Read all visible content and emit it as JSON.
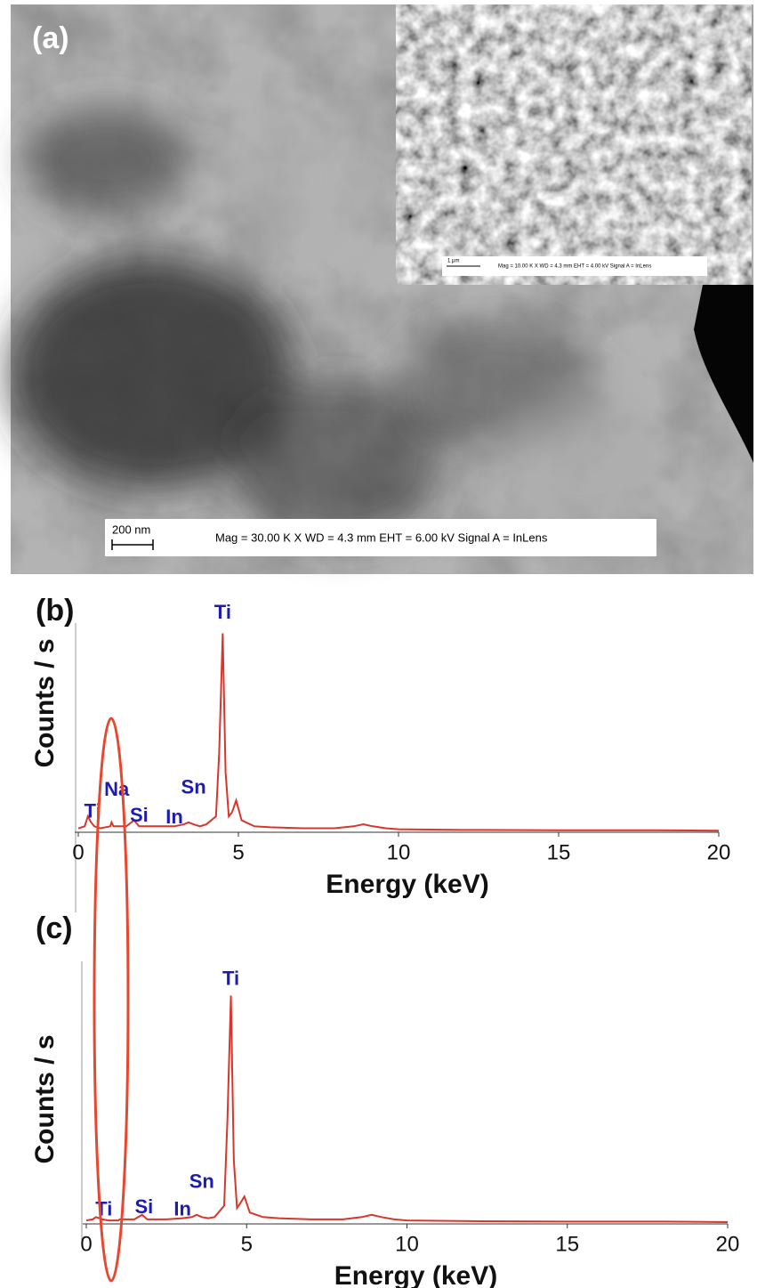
{
  "image": {
    "panel_label": "(a)",
    "scale_bar": "200 nm",
    "info": "Mag =  30.00 K X  WD =  4.3 mm   EHT =  6.00 kV   Signal A = InLens",
    "inset": {
      "scale_bar": "1 μm",
      "info": "Mag =  10.00 K X  WD =  4.3 mm   EHT =  4.00 kV   Signal A = InLens"
    }
  },
  "chart_data": [
    {
      "type": "line",
      "panel_label": "(b)",
      "y_label": "Counts / s",
      "x_label": "Energy (keV)",
      "x": [
        0,
        0.2,
        0.3,
        0.4,
        0.5,
        0.7,
        1.0,
        1.04,
        1.1,
        1.5,
        1.74,
        1.9,
        2.5,
        3.0,
        3.3,
        3.44,
        3.6,
        3.8,
        4.0,
        4.3,
        4.4,
        4.51,
        4.6,
        4.7,
        4.8,
        4.93,
        5.1,
        5.5,
        6.0,
        7.0,
        8.0,
        8.6,
        8.9,
        9.2,
        9.6,
        10,
        12,
        15,
        18,
        20
      ],
      "values": [
        2,
        3,
        8,
        5,
        3,
        2,
        3,
        5,
        3,
        3,
        6,
        3,
        3,
        3,
        4,
        5,
        4,
        3,
        4,
        8,
        40,
        100,
        30,
        8,
        10,
        16,
        6,
        3,
        2.5,
        2,
        2,
        3,
        4,
        3,
        2,
        1.5,
        1.2,
        1,
        1,
        0.8
      ],
      "color": "#d9362b",
      "xlim": [
        0,
        20
      ],
      "ylim": [
        0,
        115
      ],
      "xticks": [
        0,
        5,
        10,
        15,
        20
      ],
      "annotation_color": "#1c1cb4",
      "annotations": [
        {
          "text": "Ti",
          "x": 4.51,
          "y": 110
        },
        {
          "text": "Ti",
          "x": 0.45,
          "y": 10
        },
        {
          "text": "Na",
          "x": 1.2,
          "y": 21
        },
        {
          "text": "Si",
          "x": 1.9,
          "y": 8
        },
        {
          "text": "In",
          "x": 3.0,
          "y": 7
        },
        {
          "text": "Sn",
          "x": 3.6,
          "y": 22
        }
      ]
    },
    {
      "type": "line",
      "panel_label": "(c)",
      "y_label": "Counts / s",
      "x_label": "Energy (keV)",
      "x": [
        0,
        0.2,
        0.3,
        0.4,
        0.5,
        0.7,
        1.0,
        1.04,
        1.1,
        1.5,
        1.74,
        1.9,
        2.5,
        3.0,
        3.3,
        3.44,
        3.6,
        3.8,
        4.0,
        4.3,
        4.4,
        4.51,
        4.6,
        4.7,
        4.8,
        4.93,
        5.1,
        5.5,
        6.0,
        7.0,
        8.0,
        8.6,
        8.9,
        9.2,
        9.6,
        10,
        12,
        15,
        18,
        20
      ],
      "values": [
        1.5,
        2,
        3,
        2.5,
        2,
        1.5,
        1.5,
        2,
        2,
        2,
        4,
        2,
        2,
        2.5,
        3,
        4,
        3,
        2.5,
        3,
        8,
        45,
        100,
        28,
        7,
        9,
        12,
        5,
        3,
        2.5,
        2,
        2,
        3,
        4,
        3,
        2,
        1.5,
        1.2,
        1,
        1,
        0.8
      ],
      "color": "#d9362b",
      "xlim": [
        0,
        20
      ],
      "ylim": [
        0,
        115
      ],
      "xticks": [
        0,
        5,
        10,
        15,
        20
      ],
      "annotation_color": "#1c1cb4",
      "annotations": [
        {
          "text": "Ti",
          "x": 4.51,
          "y": 107
        },
        {
          "text": "Ti",
          "x": 0.55,
          "y": 6
        },
        {
          "text": "Si",
          "x": 1.8,
          "y": 7
        },
        {
          "text": "In",
          "x": 3.0,
          "y": 6
        },
        {
          "text": "Sn",
          "x": 3.6,
          "y": 18
        }
      ]
    }
  ]
}
